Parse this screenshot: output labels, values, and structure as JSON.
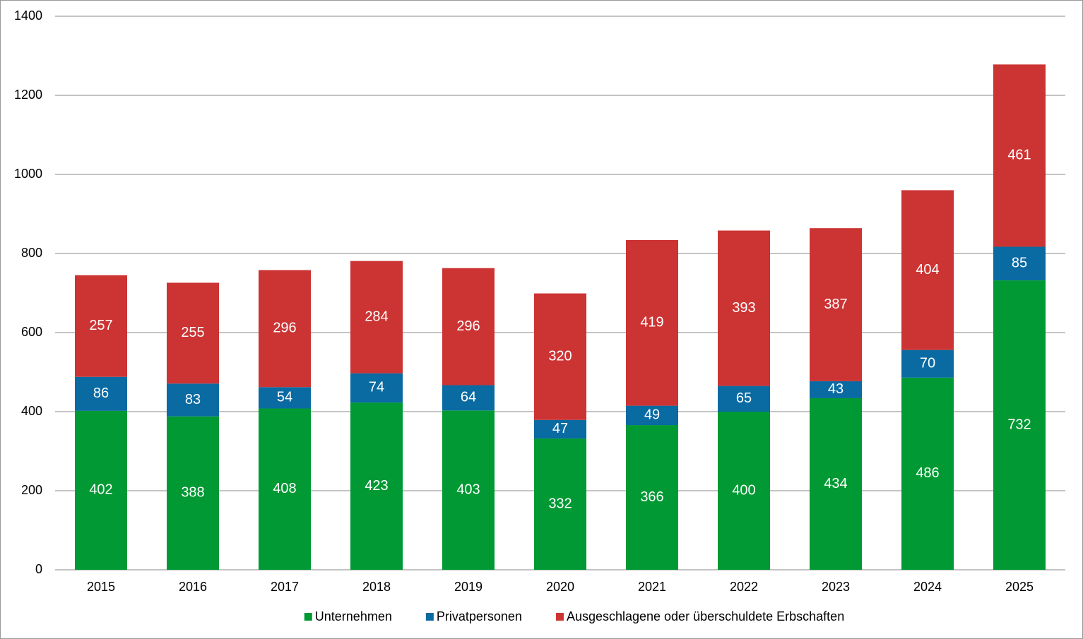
{
  "chart_data": {
    "type": "stacked_bar",
    "categories": [
      "2015",
      "2016",
      "2017",
      "2018",
      "2019",
      "2020",
      "2021",
      "2022",
      "2023",
      "2024",
      "2025"
    ],
    "series": [
      {
        "name": "Unternehmen",
        "color": "#009933",
        "values": [
          402,
          388,
          408,
          423,
          403,
          332,
          366,
          400,
          434,
          486,
          732
        ]
      },
      {
        "name": "Privatpersonen",
        "color": "#0a6aa2",
        "values": [
          86,
          83,
          54,
          74,
          64,
          47,
          49,
          65,
          43,
          70,
          85
        ]
      },
      {
        "name": "Ausgeschlagene oder überschuldete Erbschaften",
        "color": "#cc3333",
        "values": [
          257,
          255,
          296,
          284,
          296,
          320,
          419,
          393,
          387,
          404,
          461
        ]
      }
    ],
    "ylim": [
      0,
      1400
    ],
    "yticks": [
      0,
      200,
      400,
      600,
      800,
      1000,
      1200,
      1400
    ],
    "grid": true,
    "legend": "bottom"
  }
}
